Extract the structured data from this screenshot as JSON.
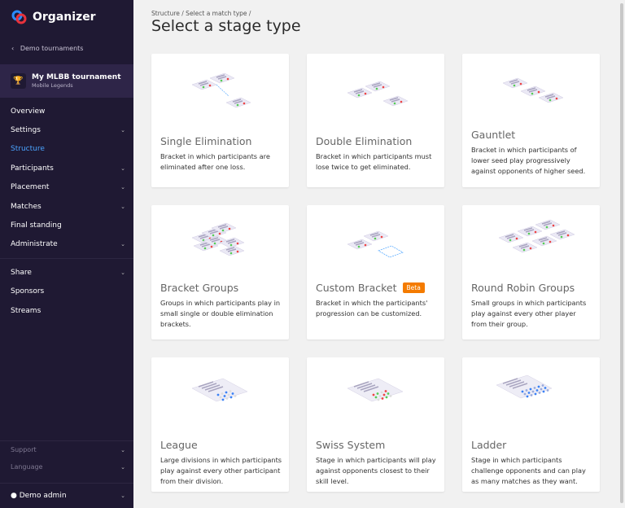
{
  "app": {
    "name": "Organizer"
  },
  "sidebar": {
    "back_label": "Demo tournaments",
    "tournament": {
      "name": "My MLBB tournament",
      "game": "Mobile Legends"
    },
    "items": [
      {
        "label": "Overview",
        "chevron": false
      },
      {
        "label": "Settings",
        "chevron": true
      },
      {
        "label": "Structure",
        "chevron": false,
        "active": true
      },
      {
        "label": "Participants",
        "chevron": true
      },
      {
        "label": "Placement",
        "chevron": true
      },
      {
        "label": "Matches",
        "chevron": true
      },
      {
        "label": "Final standing",
        "chevron": false
      },
      {
        "label": "Administrate",
        "chevron": true
      }
    ],
    "items2": [
      {
        "label": "Share",
        "chevron": true
      },
      {
        "label": "Sponsors"
      },
      {
        "label": "Streams"
      }
    ],
    "footer": [
      {
        "label": "Support"
      },
      {
        "label": "Language"
      }
    ],
    "user": "Demo admin",
    "active_color": "#4aa3ff"
  },
  "breadcrumb": "Structure  / Select a match type /",
  "page_title": "Select a stage type",
  "cards": [
    {
      "title": "Single Elimination",
      "desc": "Bracket in which participants are eliminated after one loss."
    },
    {
      "title": "Double Elimination",
      "desc": "Bracket in which participants must lose twice to get eliminated."
    },
    {
      "title": "Gauntlet",
      "desc": "Bracket in which participants of lower seed play progressively against opponents of higher seed."
    },
    {
      "title": "Bracket Groups",
      "desc": "Groups in which participants play in small single or double elimination brackets."
    },
    {
      "title": "Custom Bracket",
      "badge": "Beta",
      "desc": "Bracket in which the participants' progression can be customized."
    },
    {
      "title": "Round Robin Groups",
      "desc": "Small groups in which participants play against every other player from their group."
    },
    {
      "title": "League",
      "desc": "Large divisions in which participants play against every other participant from their division."
    },
    {
      "title": "Swiss System",
      "desc": "Stage in which participants will play against opponents closest to their skill level."
    },
    {
      "title": "Ladder",
      "desc": "Stage in which participants challenge opponents and can play as many matches as they want."
    }
  ],
  "badge_color": "#f47b00"
}
